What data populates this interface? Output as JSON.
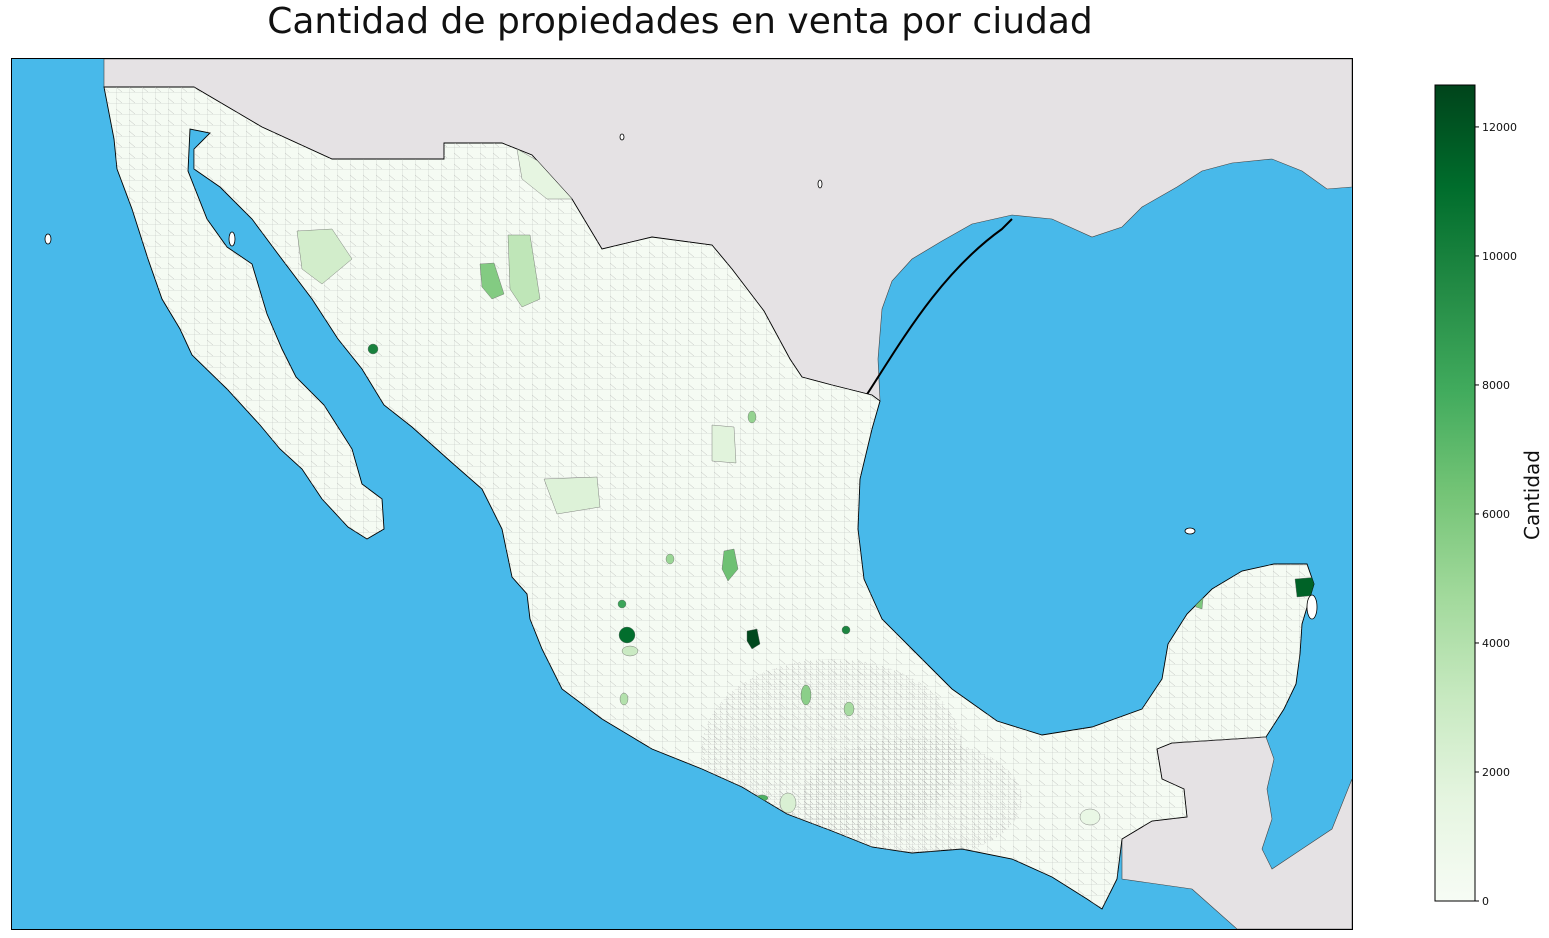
{
  "title": "Cantidad de propiedades en venta por ciudad",
  "colors": {
    "ocean": "#48b9ea",
    "land_foreign": "#e5e2e4",
    "land_mexico": "#f5fbf3",
    "border": "#000000",
    "muni_lines": "#9a9a9a",
    "cmap": [
      "#f7fcf5",
      "#e5f5e0",
      "#c7e9c0",
      "#a1d99b",
      "#74c476",
      "#41ab5d",
      "#238b45",
      "#006d2c",
      "#00441b"
    ]
  },
  "colorbar": {
    "label": "Cantidad",
    "min": 0,
    "max": 12650,
    "ticks": [
      "0",
      "2000",
      "4000",
      "6000",
      "8000",
      "10000",
      "12000"
    ]
  },
  "map_layers": {
    "bodies_of_water": [
      "Pacific Ocean",
      "Gulf of California",
      "Gulf of Mexico",
      "Caribbean Sea"
    ],
    "countries": [
      "Mexico",
      "United States",
      "Guatemala",
      "Belize"
    ],
    "highlighted_municipalities": [
      {
        "value": 11500
      },
      {
        "value": 12500
      },
      {
        "value": 10500
      },
      {
        "value": 11000
      },
      {
        "value": 10000
      },
      {
        "value": 9800
      },
      {
        "value": 8200
      },
      {
        "value": 7500
      },
      {
        "value": 6500
      },
      {
        "value": 6000
      },
      {
        "value": 5800
      },
      {
        "value": 5500
      },
      {
        "value": 5200
      },
      {
        "value": 5000
      },
      {
        "value": 4500
      },
      {
        "value": 4000
      },
      {
        "value": 3500
      },
      {
        "value": 3000
      },
      {
        "value": 2600
      },
      {
        "value": 2200
      },
      {
        "value": 2000
      },
      {
        "value": 1800
      },
      {
        "value": 1500
      },
      {
        "value": 1200
      }
    ]
  }
}
